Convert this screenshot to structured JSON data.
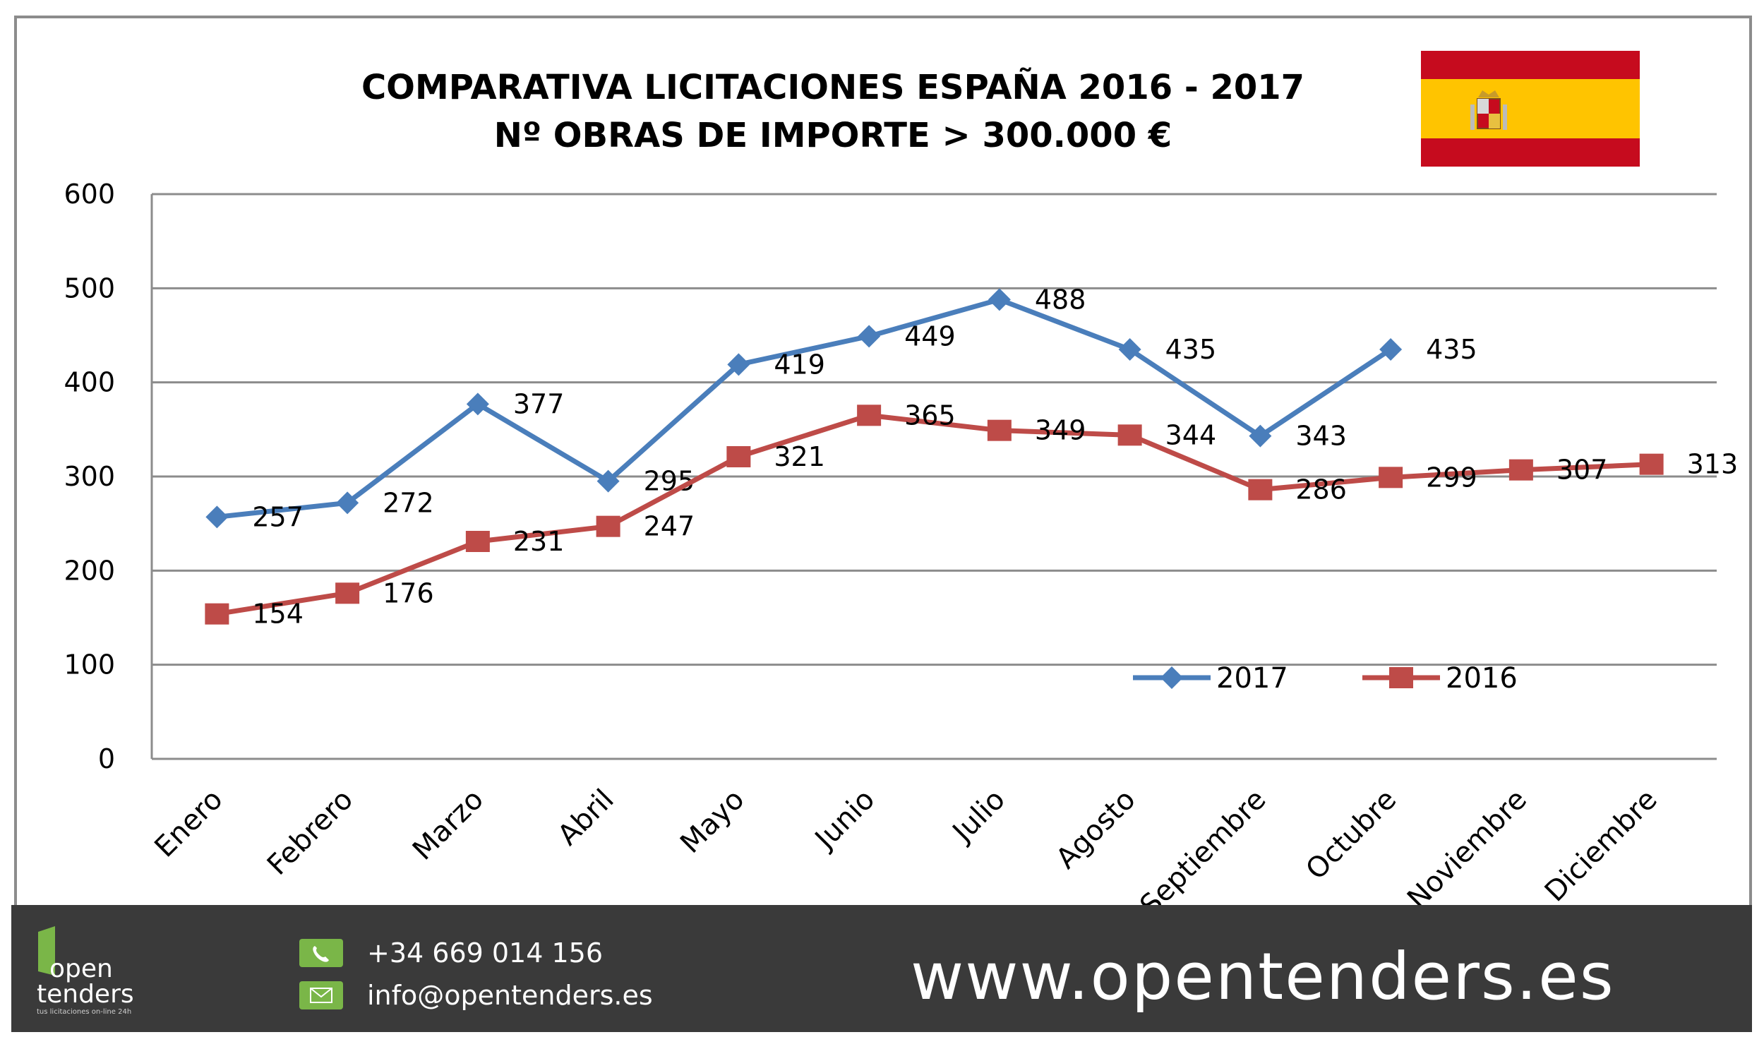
{
  "chart_data": {
    "type": "line",
    "title": "COMPARATIVA LICITACIONES ESPAÑA 2016 - 2017",
    "subtitle": "Nº OBRAS DE IMPORTE > 300.000 €",
    "xlabel": "",
    "ylabel": "",
    "categories": [
      "Enero",
      "Febrero",
      "Marzo",
      "Abril",
      "Mayo",
      "Junio",
      "Julio",
      "Agosto",
      "Septiembre",
      "Octubre",
      "Noviembre",
      "Diciembre"
    ],
    "ylim": [
      0,
      600
    ],
    "yticks": [
      "0",
      "100",
      "200",
      "300",
      "400",
      "500",
      "600"
    ],
    "grid": true,
    "legend_position": "bottom-right",
    "series": [
      {
        "name": "2017",
        "color": "#4a7ebb",
        "marker": "diamond",
        "values": [
          257,
          272,
          377,
          295,
          419,
          449,
          488,
          435,
          343,
          435,
          null,
          null
        ]
      },
      {
        "name": "2016",
        "color": "#be4b48",
        "marker": "square",
        "values": [
          154,
          176,
          231,
          247,
          321,
          365,
          349,
          344,
          286,
          299,
          307,
          313
        ]
      }
    ]
  },
  "flag": {
    "colors": {
      "red": "#c60b1e",
      "yellow": "#ffc400"
    },
    "emblem_icon": "coat-of-arms-icon"
  },
  "footer": {
    "phone": "+34 669 014 156",
    "email": "info@opentenders.es",
    "website": "www.opentenders.es",
    "logo_open": "open",
    "logo_tenders": "tenders",
    "logo_tagline": "tus licitaciones on-line 24h",
    "accent": "#7ab648",
    "background": "#3a3a3a"
  }
}
